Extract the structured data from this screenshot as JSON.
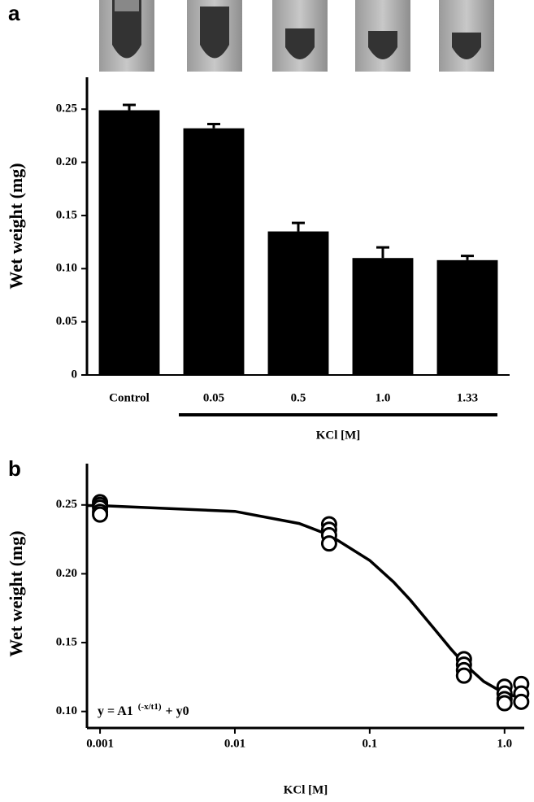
{
  "chart_data": [
    {
      "type": "bar",
      "panel": "a",
      "ylabel": "Wet weight (mg)",
      "xlabel": "KCl [M]",
      "categories": [
        "Control",
        "0.05",
        "0.5",
        "1.0",
        "1.33"
      ],
      "values": [
        0.249,
        0.232,
        0.135,
        0.11,
        0.108
      ],
      "errors": [
        0.005,
        0.004,
        0.008,
        0.01,
        0.004
      ],
      "color": "#000000",
      "ylim": [
        0,
        0.28
      ],
      "yticks": [
        0,
        0.05,
        {
          "value": 0.1,
          "label": "0.10"
        },
        0.15,
        {
          "value": 0.2,
          "label": "0.20"
        },
        0.25
      ]
    },
    {
      "type": "scatter",
      "panel": "b",
      "ylabel": "Wet weight (mg)",
      "xlabel": "KCl [M]",
      "equation": [
        "y = A1",
        "(-x/t1)",
        "+ y0"
      ],
      "xlog": true,
      "x": [
        0.001,
        0.001,
        0.001,
        0.001,
        0.001,
        0.05,
        0.05,
        0.05,
        0.05,
        0.5,
        0.5,
        0.5,
        0.5,
        1.0,
        1.0,
        1.0,
        1.0,
        1.33,
        1.33,
        1.33
      ],
      "values": [
        0.252,
        0.25,
        0.248,
        0.245,
        0.243,
        0.236,
        0.232,
        0.228,
        0.222,
        0.138,
        0.134,
        0.13,
        0.126,
        0.118,
        0.113,
        0.109,
        0.106,
        0.12,
        0.113,
        0.107
      ],
      "fit": {
        "x": [
          0.0008,
          0.001,
          0.01,
          0.03,
          0.05,
          0.1,
          0.15,
          0.2,
          0.3,
          0.4,
          0.5,
          0.7,
          1.0,
          1.4
        ],
        "values": [
          0.2496,
          0.2495,
          0.2453,
          0.2365,
          0.2282,
          0.2097,
          0.1941,
          0.1809,
          0.1602,
          0.1454,
          0.1348,
          0.1218,
          0.1131,
          0.1093
        ]
      },
      "color": "#000000",
      "xlim": [
        0.0008,
        1.4
      ],
      "xticks": [
        0.001,
        0.01,
        0.1,
        {
          "value": 1,
          "label": "1.0"
        }
      ],
      "ylim": [
        0.088,
        0.28
      ],
      "yticks": [
        {
          "value": 0.1,
          "label": "0.10"
        },
        0.15,
        {
          "value": 0.2,
          "label": "0.20"
        },
        0.25
      ]
    }
  ]
}
